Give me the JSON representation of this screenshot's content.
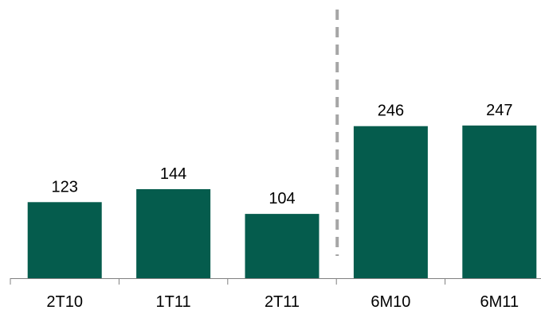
{
  "chart_data": {
    "type": "bar",
    "categories": [
      "2T10",
      "1T11",
      "2T11",
      "6M10",
      "6M11"
    ],
    "values": [
      123,
      144,
      104,
      246,
      247
    ],
    "data_labels": [
      "123",
      "144",
      "104",
      "246",
      "247"
    ],
    "title": "",
    "xlabel": "",
    "ylabel": "",
    "ylim": [
      0,
      450
    ],
    "grid": false,
    "legend": "none",
    "separator_after_category": "2T11",
    "colors": {
      "bar": "#055C4D",
      "axis": "#808080",
      "separator": "#A6A6A6",
      "text": "#000000"
    }
  }
}
